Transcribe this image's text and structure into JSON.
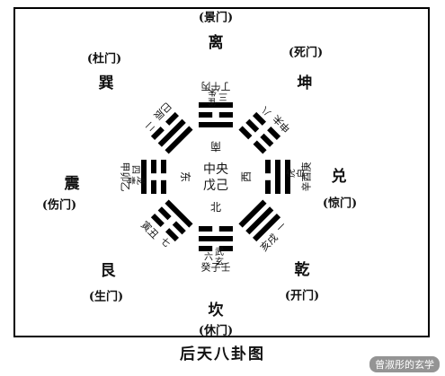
{
  "caption": "后天八卦图",
  "watermark": "曾淑彤的玄学",
  "center": {
    "line1": "中央",
    "line2": "戊己"
  },
  "trigrams": [
    {
      "key": "li",
      "name": "离",
      "gate": "(景门)",
      "dir": "南",
      "element": "朱雀",
      "number": "三",
      "branches": "丁午丙",
      "lines": [
        1,
        0,
        1
      ]
    },
    {
      "key": "kun",
      "name": "坤",
      "gate": "(死门)",
      "dir": "",
      "element": "",
      "number": "八",
      "branches": "申未",
      "lines": [
        0,
        0,
        0
      ]
    },
    {
      "key": "dui",
      "name": "兑",
      "gate": "(惊门)",
      "dir": "西",
      "element": "白虎",
      "number": "",
      "branches": "辛酉庚",
      "lines": [
        0,
        1,
        1
      ]
    },
    {
      "key": "qian",
      "name": "乾",
      "gate": "(开门)",
      "dir": "",
      "element": "",
      "number": "一",
      "branches": "亥戌",
      "lines": [
        1,
        1,
        1
      ]
    },
    {
      "key": "kan",
      "name": "坎",
      "gate": "(休门)",
      "dir": "北",
      "element": "玄武",
      "number": "六",
      "branches": "癸子壬",
      "lines": [
        0,
        1,
        0
      ]
    },
    {
      "key": "gen",
      "name": "艮",
      "gate": "(生门)",
      "dir": "",
      "element": "",
      "number": "七",
      "branches": "寅丑",
      "lines": [
        1,
        0,
        0
      ]
    },
    {
      "key": "zhen",
      "name": "震",
      "gate": "(伤门)",
      "dir": "东",
      "element": "青龙",
      "number": "四",
      "branches": "甲卯乙",
      "lines": [
        0,
        0,
        1
      ]
    },
    {
      "key": "xun",
      "name": "巽",
      "gate": "(杜门)",
      "dir": "",
      "element": "",
      "number": "二",
      "branches": "巳辰",
      "lines": [
        1,
        1,
        0
      ]
    }
  ]
}
